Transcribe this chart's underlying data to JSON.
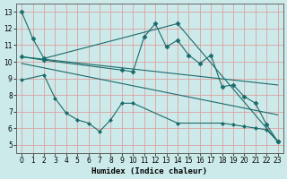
{
  "xlabel": "Humidex (Indice chaleur)",
  "xlim": [
    -0.5,
    23.5
  ],
  "ylim": [
    4.5,
    13.5
  ],
  "yticks": [
    5,
    6,
    7,
    8,
    9,
    10,
    11,
    12,
    13
  ],
  "xticks": [
    0,
    1,
    2,
    3,
    4,
    5,
    6,
    7,
    8,
    9,
    10,
    11,
    12,
    13,
    14,
    15,
    16,
    17,
    18,
    19,
    20,
    21,
    22,
    23
  ],
  "bg_color": "#cdeaea",
  "grid_color": "#dca0a0",
  "line_color": "#1a6b6b",
  "lines": [
    {
      "x": [
        0,
        1,
        2,
        14,
        23
      ],
      "y": [
        13.0,
        11.4,
        10.2,
        12.3,
        5.2
      ],
      "marker": "D",
      "markersize": 2.5
    },
    {
      "x": [
        0,
        2,
        9,
        10,
        11,
        12,
        13,
        14,
        15,
        16,
        17,
        18,
        19,
        20,
        21,
        22,
        23
      ],
      "y": [
        10.3,
        10.1,
        9.5,
        9.4,
        11.5,
        12.3,
        10.9,
        11.3,
        10.4,
        9.9,
        10.4,
        8.5,
        8.6,
        7.9,
        7.5,
        6.2,
        5.2
      ],
      "marker": "D",
      "markersize": 2.5
    },
    {
      "x": [
        0,
        2,
        3,
        4,
        5,
        6,
        7,
        8,
        9,
        10,
        14,
        18,
        19,
        20,
        21,
        22,
        23
      ],
      "y": [
        8.9,
        9.2,
        7.8,
        6.9,
        6.5,
        6.3,
        5.8,
        6.5,
        7.5,
        7.5,
        6.3,
        6.3,
        6.2,
        6.1,
        6.0,
        5.9,
        5.2
      ],
      "marker": "D",
      "markersize": 2.0
    },
    {
      "x": [
        0,
        23
      ],
      "y": [
        10.3,
        8.6
      ],
      "marker": null,
      "markersize": 0
    },
    {
      "x": [
        0,
        23
      ],
      "y": [
        9.9,
        6.8
      ],
      "marker": null,
      "markersize": 0
    }
  ]
}
